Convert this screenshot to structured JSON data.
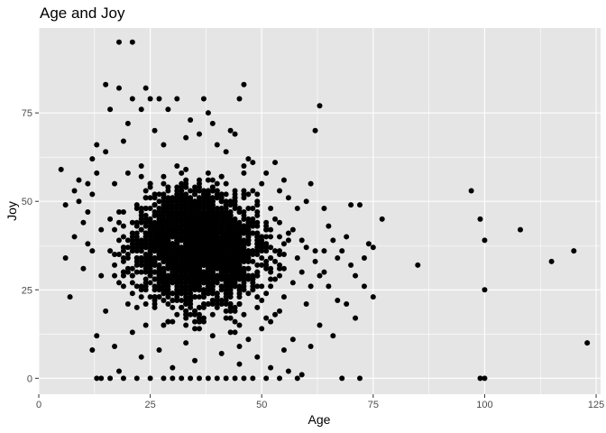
{
  "chart_data": {
    "type": "scatter",
    "title": "Age and Joy",
    "xlabel": "Age",
    "ylabel": "Joy",
    "xlim": [
      0,
      126
    ],
    "ylim": [
      -4.5,
      99
    ],
    "xticks": [
      0,
      25,
      50,
      75,
      100,
      125
    ],
    "yticks": [
      0,
      25,
      50,
      75
    ],
    "grid": true,
    "point_color": "#000000",
    "panel_color": "#e5e5e5",
    "grid_color": "#ffffff",
    "points": [
      [
        5,
        59
      ],
      [
        6,
        49
      ],
      [
        6,
        34
      ],
      [
        7,
        23
      ],
      [
        8,
        40
      ],
      [
        8,
        53
      ],
      [
        9,
        56
      ],
      [
        9,
        50
      ],
      [
        10,
        44
      ],
      [
        10,
        31
      ],
      [
        11,
        55
      ],
      [
        11,
        47
      ],
      [
        11,
        38
      ],
      [
        12,
        62
      ],
      [
        12,
        52
      ],
      [
        12,
        36
      ],
      [
        12,
        8
      ],
      [
        13,
        0
      ],
      [
        13,
        66
      ],
      [
        13,
        58
      ],
      [
        13,
        12
      ],
      [
        14,
        42
      ],
      [
        14,
        0
      ],
      [
        14,
        29
      ],
      [
        15,
        83
      ],
      [
        15,
        64
      ],
      [
        15,
        19
      ],
      [
        16,
        76
      ],
      [
        16,
        0
      ],
      [
        16,
        45
      ],
      [
        17,
        9
      ],
      [
        17,
        55
      ],
      [
        18,
        95
      ],
      [
        18,
        82
      ],
      [
        18,
        2
      ],
      [
        19,
        67
      ],
      [
        19,
        0
      ],
      [
        20,
        72
      ],
      [
        20,
        21
      ],
      [
        21,
        95
      ],
      [
        21,
        79
      ],
      [
        21,
        13
      ],
      [
        22,
        48
      ],
      [
        22,
        0
      ],
      [
        23,
        76
      ],
      [
        23,
        60
      ],
      [
        23,
        6
      ],
      [
        24,
        82
      ],
      [
        24,
        37
      ],
      [
        24,
        15
      ],
      [
        25,
        79
      ],
      [
        25,
        0
      ],
      [
        26,
        70
      ],
      [
        26,
        22
      ],
      [
        27,
        79
      ],
      [
        27,
        8
      ],
      [
        28,
        66
      ],
      [
        28,
        0
      ],
      [
        29,
        76
      ],
      [
        29,
        44
      ],
      [
        30,
        3
      ],
      [
        30,
        0
      ],
      [
        31,
        79
      ],
      [
        31,
        60
      ],
      [
        32,
        29
      ],
      [
        32,
        0
      ],
      [
        33,
        68
      ],
      [
        33,
        10
      ],
      [
        34,
        73
      ],
      [
        34,
        0
      ],
      [
        35,
        50
      ],
      [
        35,
        5
      ],
      [
        36,
        69
      ],
      [
        36,
        0
      ],
      [
        37,
        79
      ],
      [
        37,
        17
      ],
      [
        38,
        75
      ],
      [
        38,
        0
      ],
      [
        39,
        72
      ],
      [
        39,
        12
      ],
      [
        40,
        66
      ],
      [
        40,
        0
      ],
      [
        41,
        57
      ],
      [
        41,
        7
      ],
      [
        42,
        64
      ],
      [
        42,
        0
      ],
      [
        43,
        70
      ],
      [
        43,
        33
      ],
      [
        44,
        69
      ],
      [
        44,
        0
      ],
      [
        45,
        79
      ],
      [
        45,
        4
      ],
      [
        46,
        83
      ],
      [
        46,
        0
      ],
      [
        47,
        62
      ],
      [
        47,
        11
      ],
      [
        48,
        61
      ],
      [
        48,
        0
      ],
      [
        49,
        50
      ],
      [
        49,
        6
      ],
      [
        50,
        55
      ],
      [
        50,
        14
      ],
      [
        51,
        58
      ],
      [
        51,
        0
      ],
      [
        52,
        48
      ],
      [
        52,
        3
      ],
      [
        53,
        61
      ],
      [
        53,
        18
      ],
      [
        54,
        44
      ],
      [
        54,
        0
      ],
      [
        55,
        56
      ],
      [
        55,
        8
      ],
      [
        56,
        51
      ],
      [
        56,
        2
      ],
      [
        57,
        42
      ],
      [
        57,
        11
      ],
      [
        58,
        0
      ],
      [
        58,
        48
      ],
      [
        59,
        39
      ],
      [
        59,
        1
      ],
      [
        60,
        50
      ],
      [
        60,
        21
      ],
      [
        61,
        55
      ],
      [
        61,
        9
      ],
      [
        62,
        70
      ],
      [
        62,
        36
      ],
      [
        63,
        77
      ],
      [
        63,
        15
      ],
      [
        64,
        48
      ],
      [
        64,
        30
      ],
      [
        65,
        43
      ],
      [
        65,
        26
      ],
      [
        66,
        39
      ],
      [
        66,
        12
      ],
      [
        67,
        34
      ],
      [
        67,
        22
      ],
      [
        68,
        36
      ],
      [
        68,
        0
      ],
      [
        69,
        40
      ],
      [
        69,
        21
      ],
      [
        70,
        32
      ],
      [
        70,
        49
      ],
      [
        71,
        29
      ],
      [
        71,
        17
      ],
      [
        72,
        0
      ],
      [
        72,
        49
      ],
      [
        73,
        26
      ],
      [
        73,
        34
      ],
      [
        74,
        38
      ],
      [
        75,
        23
      ],
      [
        75,
        37
      ],
      [
        77,
        45
      ],
      [
        85,
        32
      ],
      [
        97,
        53
      ],
      [
        99,
        45
      ],
      [
        99,
        0
      ],
      [
        100,
        39
      ],
      [
        100,
        25
      ],
      [
        100,
        0
      ],
      [
        108,
        42
      ],
      [
        115,
        33
      ],
      [
        120,
        36
      ],
      [
        123,
        10
      ],
      [
        17,
        35
      ],
      [
        18,
        44
      ],
      [
        19,
        30
      ],
      [
        20,
        58
      ],
      [
        21,
        40
      ],
      [
        22,
        26
      ],
      [
        23,
        47
      ],
      [
        24,
        53
      ],
      [
        25,
        32
      ],
      [
        26,
        42
      ],
      [
        27,
        37
      ],
      [
        28,
        51
      ],
      [
        29,
        34
      ],
      [
        30,
        45
      ],
      [
        31,
        28
      ],
      [
        32,
        40
      ],
      [
        33,
        36
      ],
      [
        34,
        48
      ],
      [
        35,
        31
      ],
      [
        36,
        43
      ],
      [
        37,
        39
      ],
      [
        38,
        33
      ],
      [
        39,
        46
      ],
      [
        40,
        38
      ],
      [
        41,
        30
      ],
      [
        42,
        42
      ],
      [
        43,
        35
      ],
      [
        44,
        27
      ],
      [
        45,
        41
      ],
      [
        46,
        36
      ],
      [
        47,
        31
      ],
      [
        48,
        44
      ],
      [
        49,
        29
      ],
      [
        50,
        37
      ],
      [
        51,
        33
      ],
      [
        52,
        40
      ],
      [
        53,
        28
      ],
      [
        54,
        35
      ],
      [
        55,
        31
      ],
      [
        56,
        39
      ],
      [
        57,
        27
      ],
      [
        58,
        34
      ],
      [
        59,
        30
      ],
      [
        60,
        37
      ],
      [
        61,
        26
      ],
      [
        62,
        33
      ],
      [
        63,
        29
      ],
      [
        64,
        36
      ]
    ]
  }
}
